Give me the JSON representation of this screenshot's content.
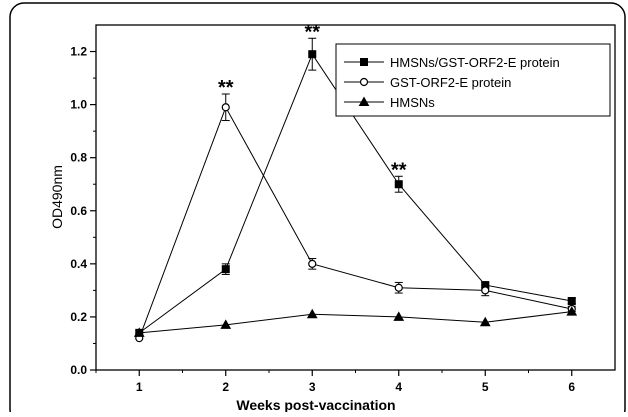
{
  "chart_data": {
    "type": "line",
    "xlabel": "Weeks post-vaccination",
    "ylabel": "OD490nm",
    "xlim": [
      0.5,
      6.5
    ],
    "ylim": [
      0.0,
      1.3
    ],
    "x_ticks": [
      "1",
      "2",
      "3",
      "4",
      "5",
      "6"
    ],
    "y_ticks": [
      "0.0",
      "0.2",
      "0.4",
      "0.6",
      "0.8",
      "1.0",
      "1.2"
    ],
    "legend_position": "top-right",
    "series": [
      {
        "name": "HMSNs/GST-ORF2-E protein",
        "marker": "filled-square",
        "x": [
          1,
          2,
          3,
          4,
          5,
          6
        ],
        "y": [
          0.14,
          0.38,
          1.19,
          0.7,
          0.32,
          0.26
        ],
        "err": [
          0.0,
          0.02,
          0.06,
          0.03,
          0.01,
          0.01
        ]
      },
      {
        "name": "GST-ORF2-E protein",
        "marker": "open-circle",
        "x": [
          1,
          2,
          3,
          4,
          5,
          6
        ],
        "y": [
          0.12,
          0.99,
          0.4,
          0.31,
          0.3,
          0.23
        ],
        "err": [
          0.0,
          0.05,
          0.02,
          0.02,
          0.02,
          0.01
        ]
      },
      {
        "name": "HMSNs",
        "marker": "filled-triangle",
        "x": [
          1,
          2,
          3,
          4,
          5,
          6
        ],
        "y": [
          0.14,
          0.17,
          0.21,
          0.2,
          0.18,
          0.22
        ],
        "err": [
          0.0,
          0.0,
          0.0,
          0.0,
          0.0,
          0.0
        ]
      }
    ],
    "annotations": [
      {
        "text": "**",
        "x": 2,
        "y": 1.04
      },
      {
        "text": "**",
        "x": 3,
        "y": 1.25
      },
      {
        "text": "**",
        "x": 4,
        "y": 0.73
      }
    ]
  }
}
